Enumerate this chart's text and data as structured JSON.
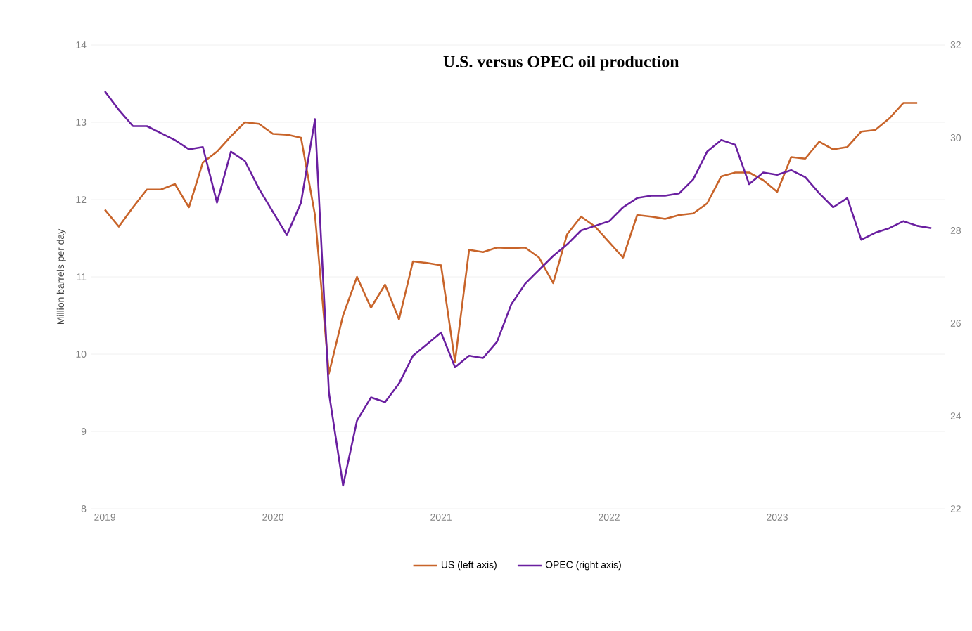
{
  "chart_data": {
    "type": "line",
    "title": "U.S. versus OPEC oil production",
    "ylabel": "Million barrels per day",
    "xlim": [
      2018.92,
      2024.0
    ],
    "xticks": [
      2019,
      2020,
      2021,
      2022,
      2023
    ],
    "ylim": [
      8,
      14
    ],
    "yticks": [
      8,
      9,
      10,
      11,
      12,
      13,
      14
    ],
    "y2lim": [
      22,
      32
    ],
    "y2ticks": [
      22,
      24,
      26,
      28,
      30,
      32
    ],
    "grid": "y",
    "legend": "bottom",
    "marker": "none",
    "line_style": "solid",
    "series": [
      {
        "name": "US (left axis)",
        "color": "#c8642a",
        "x": [
          2019.0,
          2019.083,
          2019.167,
          2019.25,
          2019.333,
          2019.417,
          2019.5,
          2019.583,
          2019.667,
          2019.75,
          2019.833,
          2019.917,
          2020.0,
          2020.083,
          2020.167,
          2020.25,
          2020.333,
          2020.417,
          2020.5,
          2020.583,
          2020.667,
          2020.75,
          2020.833,
          2020.917,
          2021.0,
          2021.083,
          2021.167,
          2021.25,
          2021.333,
          2021.417,
          2021.5,
          2021.583,
          2021.667,
          2021.75,
          2021.833,
          2021.917,
          2022.0,
          2022.083,
          2022.167,
          2022.25,
          2022.333,
          2022.417,
          2022.5,
          2022.583,
          2022.667,
          2022.75,
          2022.833,
          2022.917,
          2023.0,
          2023.083,
          2023.167,
          2023.25,
          2023.333,
          2023.417,
          2023.5,
          2023.583,
          2023.667,
          2023.75,
          2023.833
        ],
        "values": [
          11.87,
          11.65,
          11.9,
          12.13,
          12.13,
          12.2,
          11.9,
          12.48,
          12.62,
          12.82,
          13.0,
          12.98,
          12.85,
          12.84,
          12.8,
          11.8,
          9.75,
          10.5,
          11.0,
          10.6,
          10.9,
          10.45,
          11.2,
          11.18,
          11.15,
          9.9,
          11.35,
          11.32,
          11.38,
          11.37,
          11.38,
          11.25,
          10.92,
          11.55,
          11.78,
          11.65,
          11.45,
          11.25,
          11.8,
          11.78,
          11.75,
          11.8,
          11.82,
          11.95,
          12.3,
          12.35,
          12.35,
          12.25,
          12.1,
          12.55,
          12.53,
          12.75,
          12.65,
          12.68,
          12.88,
          12.9,
          13.05,
          13.25,
          13.25
        ]
      },
      {
        "name": "OPEC (right axis)",
        "color": "#6a1fa0",
        "axis": "y2",
        "x": [
          2019.0,
          2019.083,
          2019.167,
          2019.25,
          2019.333,
          2019.417,
          2019.5,
          2019.583,
          2019.667,
          2019.75,
          2019.833,
          2019.917,
          2020.0,
          2020.083,
          2020.167,
          2020.25,
          2020.333,
          2020.417,
          2020.5,
          2020.583,
          2020.667,
          2020.75,
          2020.833,
          2020.917,
          2021.0,
          2021.083,
          2021.167,
          2021.25,
          2021.333,
          2021.417,
          2021.5,
          2021.583,
          2021.667,
          2021.75,
          2021.833,
          2021.917,
          2022.0,
          2022.083,
          2022.167,
          2022.25,
          2022.333,
          2022.417,
          2022.5,
          2022.583,
          2022.667,
          2022.75,
          2022.833,
          2022.917,
          2023.0,
          2023.083,
          2023.167,
          2023.25,
          2023.333,
          2023.417,
          2023.5,
          2023.583,
          2023.667,
          2023.75,
          2023.833,
          2023.917
        ],
        "values": [
          31.0,
          30.6,
          30.25,
          30.25,
          30.1,
          29.95,
          29.75,
          29.8,
          28.6,
          29.7,
          29.5,
          28.9,
          28.4,
          27.9,
          28.6,
          30.4,
          24.5,
          22.5,
          23.9,
          24.4,
          24.3,
          24.7,
          25.3,
          25.55,
          25.8,
          25.05,
          25.3,
          25.25,
          25.6,
          26.4,
          26.85,
          27.15,
          27.45,
          27.7,
          28.0,
          28.1,
          28.2,
          28.5,
          28.7,
          28.75,
          28.75,
          28.8,
          29.1,
          29.7,
          29.95,
          29.85,
          29.0,
          29.25,
          29.2,
          29.3,
          29.15,
          28.8,
          28.5,
          28.7,
          27.8,
          27.95,
          28.05,
          28.2,
          28.1,
          28.05
        ]
      }
    ]
  }
}
